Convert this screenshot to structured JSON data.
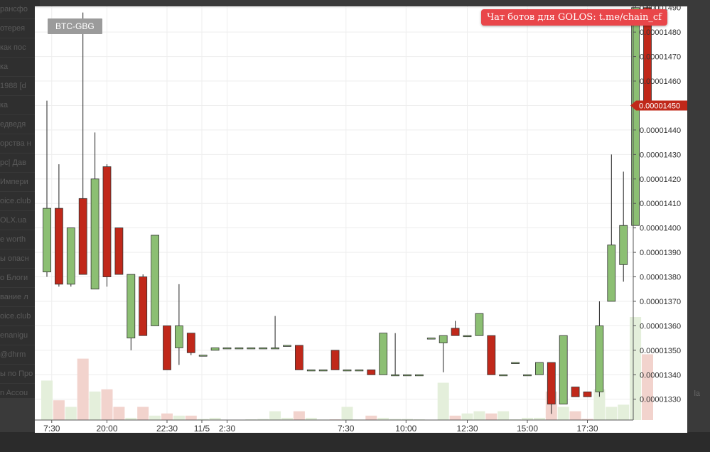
{
  "background": {
    "sidebar_items": [
      "рансфо",
      "отерея",
      "как пос",
      "ка",
      "1988 [d",
      "ка",
      "едведя",
      "орства н",
      "рс| Дав",
      "Импери",
      "oice.club",
      "OLX.ua",
      "e worth",
      "ы опасн",
      "о Блоги",
      "вание л",
      "oice.club",
      "enanigu",
      "@dhrm",
      "ы по Про",
      "n Accou"
    ],
    "right_fragment": "la"
  },
  "symbol_label": "BTC-GBG",
  "promo_link": "Чат ботов для GOLOS: t.me/chain_cf",
  "last_price_label": "0.00001450",
  "colors": {
    "up": "#8cbf73",
    "down": "#c0281a",
    "up_volume": "#e4efdb",
    "down_volume": "#f2d3cd",
    "price_tag": "#c0281a",
    "grid": "#eeeeee"
  },
  "chart_data": {
    "type": "candlestick",
    "title": "BTC-GBG",
    "xlabel": "",
    "ylabel": "",
    "y_ticks": [
      "0.00001330",
      "0.00001340",
      "0.00001350",
      "0.00001360",
      "0.00001370",
      "0.00001380",
      "0.00001390",
      "0.00001400",
      "0.00001410",
      "0.00001420",
      "0.00001430",
      "0.00001440",
      "0.00001450",
      "0.00001460",
      "0.00001470",
      "0.00001480",
      "0.00001490"
    ],
    "ylim": [
      1.3215e-05,
      1.4905e-05
    ],
    "x_ticks": [
      {
        "label": "7:30",
        "index": 0.4
      },
      {
        "label": "20:00",
        "index": 5
      },
      {
        "label": "22:30",
        "index": 10
      },
      {
        "label": "11/5",
        "index": 12.9
      },
      {
        "label": "2:30",
        "index": 15
      },
      {
        "label": "7:30",
        "index": 24.9
      },
      {
        "label": "10:00",
        "index": 29.9
      },
      {
        "label": "12:30",
        "index": 35
      },
      {
        "label": "15:00",
        "index": 40
      },
      {
        "label": "17:30",
        "index": 45
      }
    ],
    "candles": [
      {
        "o": 1.382e-05,
        "h": 1.452e-05,
        "l": 1.38e-05,
        "c": 1.408e-05,
        "v": 18
      },
      {
        "o": 1.408e-05,
        "h": 1.426e-05,
        "l": 1.376e-05,
        "c": 1.377e-05,
        "v": 9
      },
      {
        "o": 1.377e-05,
        "h": 1.4e-05,
        "l": 1.376e-05,
        "c": 1.4e-05,
        "v": 6
      },
      {
        "o": 1.412e-05,
        "h": 1.488e-05,
        "l": 1.381e-05,
        "c": 1.381e-05,
        "v": 28
      },
      {
        "o": 1.375e-05,
        "h": 1.439e-05,
        "l": 1.375e-05,
        "c": 1.42e-05,
        "v": 13
      },
      {
        "o": 1.425e-05,
        "h": 1.426e-05,
        "l": 1.376e-05,
        "c": 1.38e-05,
        "v": 14
      },
      {
        "o": 1.4e-05,
        "h": 1.4e-05,
        "l": 1.381e-05,
        "c": 1.381e-05,
        "v": 6
      },
      {
        "o": 1.355e-05,
        "h": 1.381e-05,
        "l": 1.35e-05,
        "c": 1.381e-05,
        "v": 1
      },
      {
        "o": 1.38e-05,
        "h": 1.381e-05,
        "l": 1.356e-05,
        "c": 1.356e-05,
        "v": 6
      },
      {
        "o": 1.36e-05,
        "h": 1.397e-05,
        "l": 1.36e-05,
        "c": 1.397e-05,
        "v": 2
      },
      {
        "o": 1.36e-05,
        "h": 1.36e-05,
        "l": 1.342e-05,
        "c": 1.342e-05,
        "v": 3
      },
      {
        "o": 1.351e-05,
        "h": 1.377e-05,
        "l": 1.344e-05,
        "c": 1.36e-05,
        "v": 2
      },
      {
        "o": 1.357e-05,
        "h": 1.357e-05,
        "l": 1.348e-05,
        "c": 1.349e-05,
        "v": 2
      },
      {
        "o": 1.348e-05,
        "h": 1.348e-05,
        "l": 1.348e-05,
        "c": 1.348e-05,
        "v": 0.5
      },
      {
        "o": 1.35e-05,
        "h": 1.351e-05,
        "l": 1.35e-05,
        "c": 1.351e-05,
        "v": 1
      },
      {
        "o": 1.351e-05,
        "h": 1.351e-05,
        "l": 1.351e-05,
        "c": 1.351e-05,
        "v": 0
      },
      {
        "o": 1.351e-05,
        "h": 1.351e-05,
        "l": 1.351e-05,
        "c": 1.351e-05,
        "v": 0
      },
      {
        "o": 1.351e-05,
        "h": 1.351e-05,
        "l": 1.351e-05,
        "c": 1.351e-05,
        "v": 0.3
      },
      {
        "o": 1.351e-05,
        "h": 1.351e-05,
        "l": 1.351e-05,
        "c": 1.351e-05,
        "v": 0.5
      },
      {
        "o": 1.351e-05,
        "h": 1.364e-05,
        "l": 1.351e-05,
        "c": 1.351e-05,
        "v": 4
      },
      {
        "o": 1.352e-05,
        "h": 1.352e-05,
        "l": 1.352e-05,
        "c": 1.352e-05,
        "v": 1
      },
      {
        "o": 1.352e-05,
        "h": 1.352e-05,
        "l": 1.342e-05,
        "c": 1.342e-05,
        "v": 4
      },
      {
        "o": 1.342e-05,
        "h": 1.342e-05,
        "l": 1.342e-05,
        "c": 1.342e-05,
        "v": 1
      },
      {
        "o": 1.342e-05,
        "h": 1.342e-05,
        "l": 1.342e-05,
        "c": 1.342e-05,
        "v": 0.2
      },
      {
        "o": 1.35e-05,
        "h": 1.35e-05,
        "l": 1.342e-05,
        "c": 1.342e-05,
        "v": 0.3
      },
      {
        "o": 1.342e-05,
        "h": 1.342e-05,
        "l": 1.342e-05,
        "c": 1.342e-05,
        "v": 6
      },
      {
        "o": 1.342e-05,
        "h": 1.342e-05,
        "l": 1.342e-05,
        "c": 1.342e-05,
        "v": 0.2
      },
      {
        "o": 1.342e-05,
        "h": 1.342e-05,
        "l": 1.34e-05,
        "c": 1.34e-05,
        "v": 2
      },
      {
        "o": 1.34e-05,
        "h": 1.357e-05,
        "l": 1.34e-05,
        "c": 1.357e-05,
        "v": 1
      },
      {
        "o": 1.34e-05,
        "h": 1.357e-05,
        "l": 1.34e-05,
        "c": 1.34e-05,
        "v": 0.5
      },
      {
        "o": 1.34e-05,
        "h": 1.34e-05,
        "l": 1.34e-05,
        "c": 1.34e-05,
        "v": 0.5
      },
      {
        "o": 1.34e-05,
        "h": 1.34e-05,
        "l": 1.34e-05,
        "c": 1.34e-05,
        "v": 0.3
      },
      {
        "o": 1.355e-05,
        "h": 1.355e-05,
        "l": 1.355e-05,
        "c": 1.355e-05,
        "v": 0
      },
      {
        "o": 1.353e-05,
        "h": 1.356e-05,
        "l": 1.341e-05,
        "c": 1.356e-05,
        "v": 17
      },
      {
        "o": 1.359e-05,
        "h": 1.362e-05,
        "l": 1.356e-05,
        "c": 1.356e-05,
        "v": 2
      },
      {
        "o": 1.356e-05,
        "h": 1.356e-05,
        "l": 1.356e-05,
        "c": 1.356e-05,
        "v": 3
      },
      {
        "o": 1.356e-05,
        "h": 1.365e-05,
        "l": 1.356e-05,
        "c": 1.365e-05,
        "v": 4
      },
      {
        "o": 1.356e-05,
        "h": 1.356e-05,
        "l": 1.34e-05,
        "c": 1.34e-05,
        "v": 3
      },
      {
        "o": 1.34e-05,
        "h": 1.34e-05,
        "l": 1.34e-05,
        "c": 1.34e-05,
        "v": 4
      },
      {
        "o": 1.345e-05,
        "h": 1.345e-05,
        "l": 1.345e-05,
        "c": 1.345e-05,
        "v": 0.3
      },
      {
        "o": 1.34e-05,
        "h": 1.34e-05,
        "l": 1.34e-05,
        "c": 1.34e-05,
        "v": 1
      },
      {
        "o": 1.34e-05,
        "h": 1.345e-05,
        "l": 1.34e-05,
        "c": 1.345e-05,
        "v": 1
      },
      {
        "o": 1.345e-05,
        "h": 1.345e-05,
        "l": 1.324e-05,
        "c": 1.328e-05,
        "v": 13
      },
      {
        "o": 1.328e-05,
        "h": 1.356e-05,
        "l": 1.328e-05,
        "c": 1.356e-05,
        "v": 6
      },
      {
        "o": 1.335e-05,
        "h": 1.335e-05,
        "l": 1.331e-05,
        "c": 1.331e-05,
        "v": 4
      },
      {
        "o": 1.333e-05,
        "h": 1.333e-05,
        "l": 1.331e-05,
        "c": 1.331e-05,
        "v": 0.5
      },
      {
        "o": 1.333e-05,
        "h": 1.37e-05,
        "l": 1.331e-05,
        "c": 1.36e-05,
        "v": 14
      },
      {
        "o": 1.37e-05,
        "h": 1.43e-05,
        "l": 1.37e-05,
        "c": 1.393e-05,
        "v": 6
      },
      {
        "o": 1.385e-05,
        "h": 1.423e-05,
        "l": 1.378e-05,
        "c": 1.401e-05,
        "v": 7
      },
      {
        "o": 1.401e-05,
        "h": 1.495e-05,
        "l": 1.401e-05,
        "c": 1.49e-05,
        "v": 47
      },
      {
        "o": 1.49e-05,
        "h": 1.495e-05,
        "l": 1.45e-05,
        "c": 1.45e-05,
        "v": 30
      }
    ]
  }
}
